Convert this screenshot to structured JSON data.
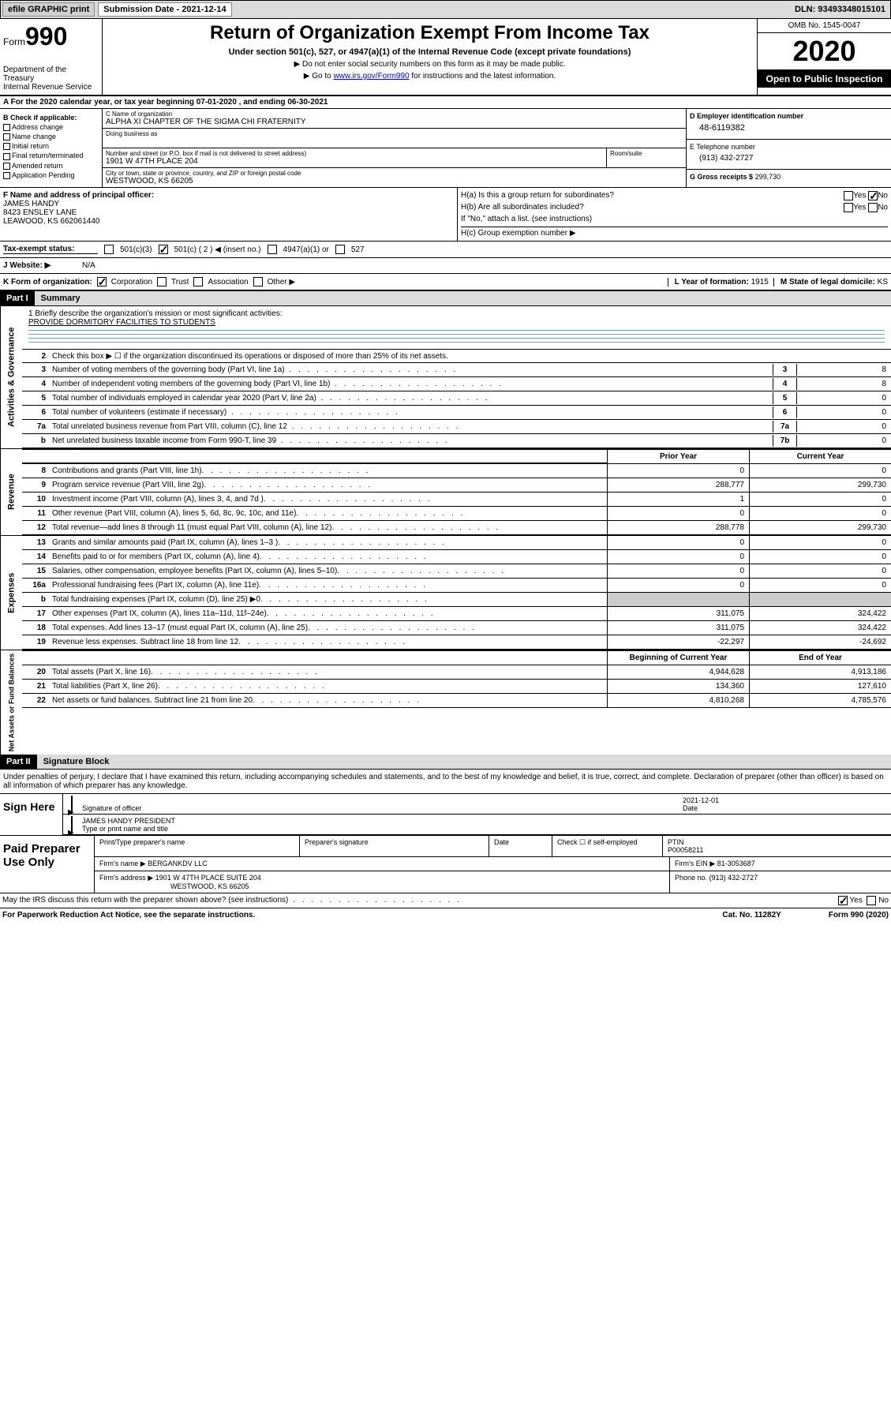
{
  "topbar": {
    "efile": "efile GRAPHIC print",
    "submission_label": "Submission Date - 2021-12-14",
    "dln": "DLN: 93493348015101"
  },
  "header": {
    "form_prefix": "Form",
    "form_number": "990",
    "title": "Return of Organization Exempt From Income Tax",
    "subtitle": "Under section 501(c), 527, or 4947(a)(1) of the Internal Revenue Code (except private foundations)",
    "note1": "▶ Do not enter social security numbers on this form as it may be made public.",
    "note2_pre": "▶ Go to ",
    "note2_link": "www.irs.gov/Form990",
    "note2_post": " for instructions and the latest information.",
    "dept": "Department of the Treasury\nInternal Revenue Service",
    "omb": "OMB No. 1545-0047",
    "year": "2020",
    "inspection": "Open to Public Inspection"
  },
  "row_a": "A For the 2020 calendar year, or tax year beginning 07-01-2020    , and ending 06-30-2021",
  "box_b": {
    "header": "B Check if applicable:",
    "items": [
      "Address change",
      "Name change",
      "Initial return",
      "Final return/terminated",
      "Amended return",
      "Application Pending"
    ]
  },
  "box_c": {
    "name_lbl": "C Name of organization",
    "name": "ALPHA XI CHAPTER OF THE SIGMA CHI FRATERNITY",
    "dba_lbl": "Doing business as",
    "street_lbl": "Number and street (or P.O. box if mail is not delivered to street address)",
    "room_lbl": "Room/suite",
    "street": "1901 W 47TH PLACE 204",
    "city_lbl": "City or town, state or province, country, and ZIP or foreign postal code",
    "city": "WESTWOOD, KS  66205"
  },
  "box_d": {
    "lbl": "D Employer identification number",
    "val": "48-6119382"
  },
  "box_e": {
    "lbl": "E Telephone number",
    "val": "(913) 432-2727"
  },
  "box_g": {
    "lbl": "G Gross receipts $",
    "val": "299,730"
  },
  "box_f": {
    "lbl": "F Name and address of principal officer:",
    "name": "JAMES HANDY",
    "addr1": "8423 ENSLEY LANE",
    "addr2": "LEAWOOD, KS  662061440"
  },
  "box_h": {
    "ha": "H(a)  Is this a group return for subordinates?",
    "hb": "H(b)  Are all subordinates included?",
    "hb_note": "If \"No,\" attach a list. (see instructions)",
    "hc": "H(c)  Group exemption number ▶",
    "yes": "Yes",
    "no": "No"
  },
  "tax_status": {
    "lbl": "Tax-exempt status:",
    "o1": "501(c)(3)",
    "o2": "501(c) ( 2 ) ◀ (insert no.)",
    "o3": "4947(a)(1) or",
    "o4": "527"
  },
  "website": {
    "lbl": "J   Website: ▶",
    "val": "N/A"
  },
  "row_k": {
    "lbl": "K Form of organization:",
    "o1": "Corporation",
    "o2": "Trust",
    "o3": "Association",
    "o4": "Other ▶",
    "l_lbl": "L Year of formation:",
    "l_val": "1915",
    "m_lbl": "M State of legal domicile:",
    "m_val": "KS"
  },
  "part1": {
    "hdr": "Part I",
    "title": "Summary",
    "q1": "1  Briefly describe the organization's mission or most significant activities:",
    "q1_ans": "PROVIDE DORMITORY FACILITIES TO STUDENTS",
    "q2": "Check this box ▶ ☐  if the organization discontinued its operations or disposed of more than 25% of its net assets."
  },
  "gov_lines": [
    {
      "n": "3",
      "d": "Number of voting members of the governing body (Part VI, line 1a)",
      "b": "3",
      "v": "8"
    },
    {
      "n": "4",
      "d": "Number of independent voting members of the governing body (Part VI, line 1b)",
      "b": "4",
      "v": "8"
    },
    {
      "n": "5",
      "d": "Total number of individuals employed in calendar year 2020 (Part V, line 2a)",
      "b": "5",
      "v": "0"
    },
    {
      "n": "6",
      "d": "Total number of volunteers (estimate if necessary)",
      "b": "6",
      "v": "0"
    },
    {
      "n": "7a",
      "d": "Total unrelated business revenue from Part VIII, column (C), line 12",
      "b": "7a",
      "v": "0"
    },
    {
      "n": "b",
      "d": "Net unrelated business taxable income from Form 990-T, line 39",
      "b": "7b",
      "v": "0"
    }
  ],
  "th": {
    "prior": "Prior Year",
    "current": "Current Year",
    "begin": "Beginning of Current Year",
    "end": "End of Year"
  },
  "revenue": [
    {
      "n": "8",
      "d": "Contributions and grants (Part VIII, line 1h)",
      "pv": "0",
      "cv": "0"
    },
    {
      "n": "9",
      "d": "Program service revenue (Part VIII, line 2g)",
      "pv": "288,777",
      "cv": "299,730"
    },
    {
      "n": "10",
      "d": "Investment income (Part VIII, column (A), lines 3, 4, and 7d )",
      "pv": "1",
      "cv": "0"
    },
    {
      "n": "11",
      "d": "Other revenue (Part VIII, column (A), lines 5, 6d, 8c, 9c, 10c, and 11e)",
      "pv": "0",
      "cv": "0"
    },
    {
      "n": "12",
      "d": "Total revenue—add lines 8 through 11 (must equal Part VIII, column (A), line 12)",
      "pv": "288,778",
      "cv": "299,730"
    }
  ],
  "expenses": [
    {
      "n": "13",
      "d": "Grants and similar amounts paid (Part IX, column (A), lines 1–3 )",
      "pv": "0",
      "cv": "0"
    },
    {
      "n": "14",
      "d": "Benefits paid to or for members (Part IX, column (A), line 4)",
      "pv": "0",
      "cv": "0"
    },
    {
      "n": "15",
      "d": "Salaries, other compensation, employee benefits (Part IX, column (A), lines 5–10)",
      "pv": "0",
      "cv": "0"
    },
    {
      "n": "16a",
      "d": "Professional fundraising fees (Part IX, column (A), line 11e)",
      "pv": "0",
      "cv": "0"
    },
    {
      "n": "b",
      "d": "Total fundraising expenses (Part IX, column (D), line 25) ▶0",
      "pv": "",
      "cv": "",
      "shaded": true
    },
    {
      "n": "17",
      "d": "Other expenses (Part IX, column (A), lines 11a–11d, 11f–24e)",
      "pv": "311,075",
      "cv": "324,422"
    },
    {
      "n": "18",
      "d": "Total expenses. Add lines 13–17 (must equal Part IX, column (A), line 25)",
      "pv": "311,075",
      "cv": "324,422"
    },
    {
      "n": "19",
      "d": "Revenue less expenses. Subtract line 18 from line 12",
      "pv": "-22,297",
      "cv": "-24,692"
    }
  ],
  "netassets": [
    {
      "n": "20",
      "d": "Total assets (Part X, line 16)",
      "pv": "4,944,628",
      "cv": "4,913,186"
    },
    {
      "n": "21",
      "d": "Total liabilities (Part X, line 26)",
      "pv": "134,360",
      "cv": "127,610"
    },
    {
      "n": "22",
      "d": "Net assets or fund balances. Subtract line 21 from line 20",
      "pv": "4,810,268",
      "cv": "4,785,576"
    }
  ],
  "side_labels": {
    "gov": "Activities & Governance",
    "rev": "Revenue",
    "exp": "Expenses",
    "net": "Net Assets or Fund Balances"
  },
  "part2": {
    "hdr": "Part II",
    "title": "Signature Block",
    "perjury": "Under penalties of perjury, I declare that I have examined this return, including accompanying schedules and statements, and to the best of my knowledge and belief, it is true, correct, and complete. Declaration of preparer (other than officer) is based on all information of which preparer has any knowledge."
  },
  "sign": {
    "here": "Sign Here",
    "sig_lbl": "Signature of officer",
    "date_lbl": "Date",
    "date": "2021-12-01",
    "name": "JAMES HANDY  PRESIDENT",
    "name_lbl": "Type or print name and title"
  },
  "paid": {
    "lbl": "Paid Preparer Use Only",
    "h1": "Print/Type preparer's name",
    "h2": "Preparer's signature",
    "h3": "Date",
    "h4a": "Check ☐ if self-employed",
    "h4b": "PTIN",
    "ptin": "P00058211",
    "firm_lbl": "Firm's name    ▶",
    "firm": "BERGANKDV LLC",
    "ein_lbl": "Firm's EIN ▶",
    "ein": "81-3053687",
    "addr_lbl": "Firm's address ▶",
    "addr1": "1901 W 47TH PLACE SUITE 204",
    "addr2": "WESTWOOD, KS  66205",
    "phone_lbl": "Phone no.",
    "phone": "(913) 432-2727"
  },
  "footer": {
    "discuss": "May the IRS discuss this return with the preparer shown above? (see instructions)",
    "yes": "Yes",
    "no": "No",
    "paperwork": "For Paperwork Reduction Act Notice, see the separate instructions.",
    "cat": "Cat. No. 11282Y",
    "form": "Form 990 (2020)"
  }
}
